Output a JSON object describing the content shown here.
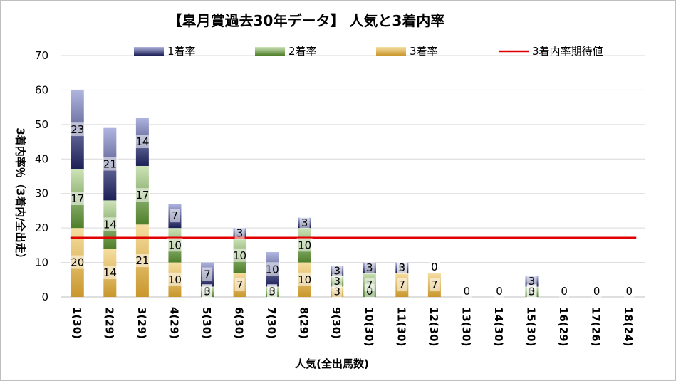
{
  "chart_data": {
    "type": "bar",
    "stacked": true,
    "title": "【皐月賞過去30年データ】 人気と3着内率",
    "xlabel": "人気(全出馬数)",
    "ylabel": "3着内率％（3着内/全出走）",
    "ylim": [
      0,
      70
    ],
    "yticks": [
      0,
      10,
      20,
      30,
      40,
      50,
      60,
      70
    ],
    "grid": true,
    "legend_position": "top",
    "categories": [
      "1(30)",
      "2(29)",
      "3(29)",
      "4(29)",
      "5(30)",
      "6(30)",
      "7(30)",
      "8(29)",
      "9(30)",
      "10(30)",
      "11(30)",
      "12(30)",
      "13(30)",
      "14(30)",
      "15(30)",
      "16(29)",
      "17(26)",
      "18(24)"
    ],
    "series": [
      {
        "name": "3着率",
        "values": [
          20,
          14,
          21,
          10,
          0,
          7,
          0,
          10,
          3,
          0,
          7,
          7,
          0,
          0,
          0,
          0,
          0,
          0
        ],
        "labels": [
          "20",
          "14",
          "21",
          "10",
          "0",
          "7",
          "0",
          "10",
          "3",
          "0",
          "7",
          "7",
          "0",
          "0",
          "0",
          "0",
          "0",
          "0"
        ],
        "colors": [
          "#f6dfa2",
          "#c9972c"
        ]
      },
      {
        "name": "2着率",
        "values": [
          17,
          14,
          17,
          10,
          3,
          10,
          3,
          10,
          3,
          7,
          0,
          0,
          0,
          0,
          3,
          0,
          0,
          0
        ],
        "labels": [
          "17",
          "14",
          "17",
          "10",
          "3",
          "10",
          "3",
          "10",
          "3",
          "7",
          "0",
          "0",
          "",
          "",
          "3",
          "",
          "",
          ""
        ],
        "colors": [
          "#cde3b8",
          "#4e7f2a"
        ]
      },
      {
        "name": "1着率",
        "values": [
          23,
          21,
          14,
          7,
          7,
          3,
          10,
          3,
          3,
          3,
          3,
          0,
          0,
          0,
          3,
          0,
          0,
          0
        ],
        "labels": [
          "23",
          "21",
          "14",
          "7",
          "7",
          "3",
          "10",
          "3",
          "3",
          "3",
          "3",
          "0",
          "",
          "",
          "3",
          "",
          "",
          ""
        ],
        "colors": [
          "#b0b5e0",
          "#1b1f55"
        ]
      },
      {
        "name": "3着内率期待値",
        "type": "line",
        "value": 17.2,
        "color": "#e00000"
      }
    ]
  }
}
